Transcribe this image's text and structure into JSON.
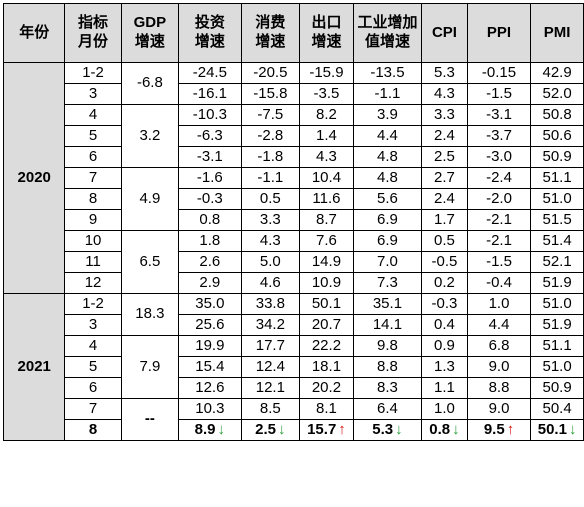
{
  "header": {
    "year": "年份",
    "month": "指标\n月份",
    "gdp": "GDP\n增速",
    "invest": "投资\n增速",
    "consume": "消费\n增速",
    "export": "出口\n增速",
    "industry": "工业增加\n值增速",
    "cpi": "CPI",
    "ppi": "PPI",
    "pmi": "PMI"
  },
  "rows": [
    {
      "year": "2020",
      "month": "1-2",
      "gdp": "-6.8",
      "invest": "-24.5",
      "consume": "-20.5",
      "export": "-15.9",
      "industry": "-13.5",
      "cpi": "5.3",
      "ppi": "-0.15",
      "pmi": "42.9"
    },
    {
      "month": "3",
      "invest": "-16.1",
      "consume": "-15.8",
      "export": "-3.5",
      "industry": "-1.1",
      "cpi": "4.3",
      "ppi": "-1.5",
      "pmi": "52.0"
    },
    {
      "month": "4",
      "gdp": "3.2",
      "invest": "-10.3",
      "consume": "-7.5",
      "export": "8.2",
      "industry": "3.9",
      "cpi": "3.3",
      "ppi": "-3.1",
      "pmi": "50.8"
    },
    {
      "month": "5",
      "invest": "-6.3",
      "consume": "-2.8",
      "export": "1.4",
      "industry": "4.4",
      "cpi": "2.4",
      "ppi": "-3.7",
      "pmi": "50.6"
    },
    {
      "month": "6",
      "invest": "-3.1",
      "consume": "-1.8",
      "export": "4.3",
      "industry": "4.8",
      "cpi": "2.5",
      "ppi": "-3.0",
      "pmi": "50.9"
    },
    {
      "month": "7",
      "gdp": "4.9",
      "invest": "-1.6",
      "consume": "-1.1",
      "export": "10.4",
      "industry": "4.8",
      "cpi": "2.7",
      "ppi": "-2.4",
      "pmi": "51.1"
    },
    {
      "month": "8",
      "invest": "-0.3",
      "consume": "0.5",
      "export": "11.6",
      "industry": "5.6",
      "cpi": "2.4",
      "ppi": "-2.0",
      "pmi": "51.0"
    },
    {
      "month": "9",
      "invest": "0.8",
      "consume": "3.3",
      "export": "8.7",
      "industry": "6.9",
      "cpi": "1.7",
      "ppi": "-2.1",
      "pmi": "51.5"
    },
    {
      "month": "10",
      "gdp": "6.5",
      "invest": "1.8",
      "consume": "4.3",
      "export": "7.6",
      "industry": "6.9",
      "cpi": "0.5",
      "ppi": "-2.1",
      "pmi": "51.4"
    },
    {
      "month": "11",
      "invest": "2.6",
      "consume": "5.0",
      "export": "14.9",
      "industry": "7.0",
      "cpi": "-0.5",
      "ppi": "-1.5",
      "pmi": "52.1"
    },
    {
      "month": "12",
      "invest": "2.9",
      "consume": "4.6",
      "export": "10.9",
      "industry": "7.3",
      "cpi": "0.2",
      "ppi": "-0.4",
      "pmi": "51.9"
    },
    {
      "year": "2021",
      "month": "1-2",
      "gdp": "18.3",
      "invest": "35.0",
      "consume": "33.8",
      "export": "50.1",
      "industry": "35.1",
      "cpi": "-0.3",
      "ppi": "1.0",
      "pmi": "51.0"
    },
    {
      "month": "3",
      "invest": "25.6",
      "consume": "34.2",
      "export": "20.7",
      "industry": "14.1",
      "cpi": "0.4",
      "ppi": "4.4",
      "pmi": "51.9"
    },
    {
      "month": "4",
      "gdp": "7.9",
      "invest": "19.9",
      "consume": "17.7",
      "export": "22.2",
      "industry": "9.8",
      "cpi": "0.9",
      "ppi": "6.8",
      "pmi": "51.1"
    },
    {
      "month": "5",
      "invest": "15.4",
      "consume": "12.4",
      "export": "18.1",
      "industry": "8.8",
      "cpi": "1.3",
      "ppi": "9.0",
      "pmi": "51.0"
    },
    {
      "month": "6",
      "invest": "12.6",
      "consume": "12.1",
      "export": "20.2",
      "industry": "8.3",
      "cpi": "1.1",
      "ppi": "8.8",
      "pmi": "50.9"
    },
    {
      "month": "7",
      "gdp": "--",
      "invest": "10.3",
      "consume": "8.5",
      "export": "8.1",
      "industry": "6.4",
      "cpi": "1.0",
      "ppi": "9.0",
      "pmi": "50.4"
    },
    {
      "month": "8",
      "invest": "8.9",
      "consume": "2.5",
      "export": "15.7",
      "industry": "5.3",
      "cpi": "0.8",
      "ppi": "9.5",
      "pmi": "50.1"
    }
  ],
  "arrows": {
    "down": "↓",
    "up": "↑",
    "last_row": {
      "invest": "down",
      "consume": "down",
      "export": "up",
      "industry": "down",
      "cpi": "down",
      "ppi": "up",
      "pmi": "down"
    }
  },
  "colors": {
    "header_bg": "#dcdcdc",
    "arrow_down": "#2a9d3a",
    "arrow_up": "#d01818"
  }
}
